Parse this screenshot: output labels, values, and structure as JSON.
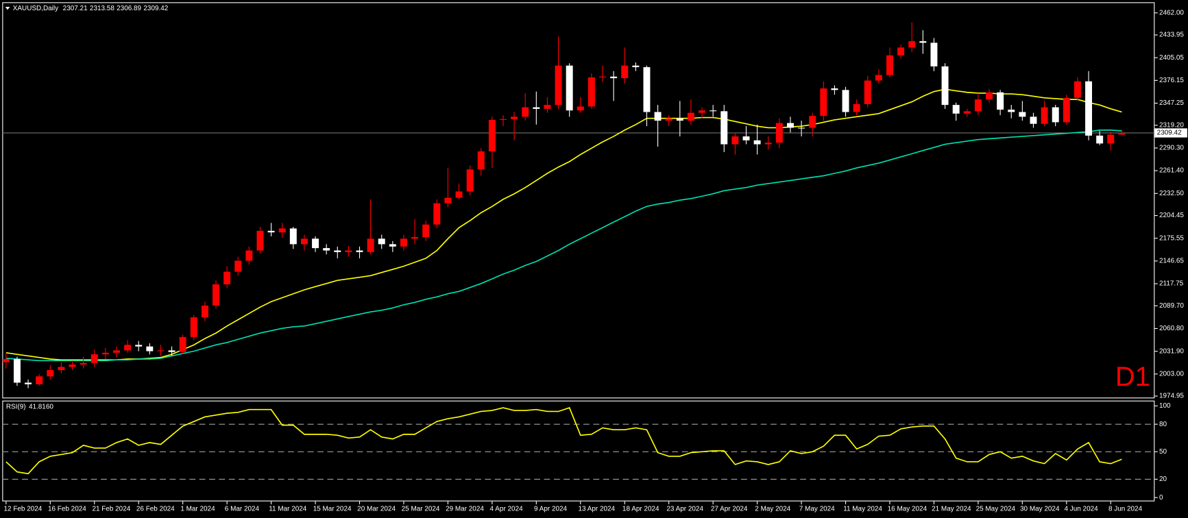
{
  "chart_data": {
    "type": "candlestick",
    "title": "XAUUSD,Daily",
    "timeframe": "D1",
    "up_color": "#ff0000",
    "down_color": "#ffffff",
    "price_line_color": "#808080",
    "categories": [
      "12 Feb 2024",
      null,
      null,
      null,
      "16 Feb 2024",
      null,
      null,
      null,
      "21 Feb 2024",
      null,
      null,
      null,
      "26 Feb 2024",
      null,
      null,
      null,
      "1 Mar 2024",
      null,
      null,
      null,
      "6 Mar 2024",
      null,
      null,
      null,
      "11 Mar 2024",
      null,
      null,
      null,
      "15 Mar 2024",
      null,
      null,
      null,
      "20 Mar 2024",
      null,
      null,
      null,
      "25 Mar 2024",
      null,
      null,
      null,
      "29 Mar 2024",
      null,
      null,
      null,
      "4 Apr 2024",
      null,
      null,
      null,
      "9 Apr 2024",
      null,
      null,
      null,
      "13 Apr 2024",
      null,
      null,
      null,
      "18 Apr 2024",
      null,
      null,
      null,
      "23 Apr 2024",
      null,
      null,
      null,
      "27 Apr 2024",
      null,
      null,
      null,
      "2 May 2024",
      null,
      null,
      null,
      "7 May 2024",
      null,
      null,
      null,
      "11 May 2024",
      null,
      null,
      null,
      "16 May 2024",
      null,
      null,
      null,
      "21 May 2024",
      null,
      null,
      null,
      "25 May 2024",
      null,
      null,
      null,
      "30 May 2024",
      null,
      null,
      null,
      "4 Jun 2024",
      null,
      null,
      null,
      "8 Jun 2024",
      null
    ],
    "open": [
      2018,
      2022,
      1992,
      1990,
      2000,
      2008,
      2012,
      2015,
      2017,
      2028,
      2030,
      2033,
      2040,
      2038,
      2032,
      2033,
      2031,
      2050,
      2075,
      2090,
      2117,
      2133,
      2147,
      2160,
      2185,
      2183,
      2188,
      2168,
      2175,
      2163,
      2160,
      2158,
      2160,
      2158,
      2175,
      2168,
      2165,
      2175,
      2177,
      2193,
      2220,
      2227,
      2235,
      2263,
      2286,
      2326,
      2327,
      2330,
      2342,
      2340,
      2345,
      2395,
      2338,
      2343,
      2380,
      2381,
      2379,
      2395,
      2393,
      2336,
      2325,
      2328,
      2325,
      2335,
      2338,
      2337,
      2295,
      2305,
      2300,
      2295,
      2297,
      2322,
      2316,
      2316,
      2331,
      2366,
      2364,
      2336,
      2346,
      2376,
      2383,
      2408,
      2418,
      2426,
      2424,
      2394,
      2345,
      2334,
      2337,
      2352,
      2361,
      2339,
      2336,
      2330,
      2321,
      2342,
      2323,
      2354,
      2375,
      2306,
      2296,
      2307.21
    ],
    "high": [
      2030,
      2025,
      1996,
      2003,
      2014,
      2018,
      2020,
      2025,
      2034,
      2036,
      2038,
      2046,
      2045,
      2042,
      2040,
      2038,
      2053,
      2078,
      2095,
      2122,
      2140,
      2152,
      2165,
      2190,
      2195,
      2195,
      2190,
      2180,
      2178,
      2168,
      2165,
      2166,
      2165,
      2225,
      2180,
      2172,
      2180,
      2200,
      2198,
      2225,
      2265,
      2245,
      2268,
      2290,
      2330,
      2332,
      2336,
      2360,
      2362,
      2355,
      2432,
      2398,
      2355,
      2385,
      2395,
      2388,
      2418,
      2399,
      2395,
      2345,
      2332,
      2350,
      2352,
      2342,
      2345,
      2345,
      2310,
      2318,
      2320,
      2305,
      2328,
      2330,
      2325,
      2335,
      2375,
      2370,
      2368,
      2352,
      2382,
      2390,
      2418,
      2422,
      2450,
      2440,
      2430,
      2398,
      2348,
      2340,
      2360,
      2365,
      2364,
      2345,
      2350,
      2335,
      2350,
      2345,
      2358,
      2380,
      2388,
      2312,
      2311,
      2313.58
    ],
    "low": [
      2010,
      1988,
      1985,
      1988,
      1996,
      2004,
      2008,
      2010,
      2012,
      2022,
      2024,
      2030,
      2032,
      2028,
      2026,
      2026,
      2028,
      2046,
      2070,
      2086,
      2112,
      2128,
      2142,
      2156,
      2178,
      2176,
      2162,
      2160,
      2158,
      2155,
      2150,
      2152,
      2150,
      2155,
      2162,
      2158,
      2160,
      2168,
      2172,
      2188,
      2215,
      2225,
      2230,
      2255,
      2265,
      2318,
      2300,
      2325,
      2320,
      2335,
      2340,
      2330,
      2335,
      2340,
      2374,
      2350,
      2372,
      2388,
      2318,
      2292,
      2318,
      2305,
      2320,
      2328,
      2330,
      2285,
      2282,
      2295,
      2282,
      2288,
      2290,
      2310,
      2305,
      2305,
      2325,
      2358,
      2330,
      2332,
      2342,
      2372,
      2380,
      2404,
      2412,
      2410,
      2388,
      2340,
      2325,
      2330,
      2332,
      2348,
      2332,
      2328,
      2325,
      2316,
      2318,
      2318,
      2320,
      2350,
      2300,
      2294,
      2287,
      2306.89
    ],
    "close": [
      2022,
      1992,
      1990,
      2000,
      2008,
      2012,
      2015,
      2017,
      2028,
      2030,
      2033,
      2040,
      2038,
      2032,
      2033,
      2031,
      2050,
      2075,
      2090,
      2117,
      2133,
      2147,
      2160,
      2185,
      2183,
      2188,
      2168,
      2175,
      2163,
      2160,
      2158,
      2160,
      2158,
      2175,
      2168,
      2165,
      2175,
      2177,
      2193,
      2220,
      2227,
      2235,
      2263,
      2286,
      2326,
      2327,
      2330,
      2342,
      2340,
      2345,
      2395,
      2338,
      2343,
      2380,
      2381,
      2379,
      2395,
      2393,
      2336,
      2325,
      2328,
      2325,
      2335,
      2338,
      2337,
      2295,
      2305,
      2300,
      2295,
      2297,
      2322,
      2316,
      2316,
      2331,
      2366,
      2364,
      2336,
      2346,
      2376,
      2383,
      2408,
      2418,
      2426,
      2424,
      2394,
      2345,
      2334,
      2337,
      2352,
      2361,
      2339,
      2336,
      2330,
      2321,
      2342,
      2323,
      2354,
      2375,
      2306,
      2296,
      2307.21,
      2309.42
    ],
    "moving_averages": [
      {
        "color": "#ffff00",
        "values": [
          2030,
          2028,
          2026,
          2024,
          2022,
          2021,
          2021,
          2021,
          2021,
          2021,
          2021,
          2022,
          2022,
          2023,
          2024,
          2028,
          2034,
          2040,
          2048,
          2055,
          2064,
          2072,
          2080,
          2088,
          2095,
          2100,
          2105,
          2110,
          2114,
          2118,
          2122,
          2124,
          2126,
          2128,
          2132,
          2136,
          2140,
          2145,
          2150,
          2160,
          2175,
          2189,
          2198,
          2208,
          2216,
          2225,
          2232,
          2240,
          2249,
          2258,
          2266,
          2273,
          2282,
          2290,
          2298,
          2305,
          2313,
          2320,
          2328,
          2328,
          2328,
          2328,
          2328,
          2329,
          2329,
          2327,
          2324,
          2321,
          2318,
          2316,
          2316,
          2317,
          2318,
          2320,
          2323,
          2326,
          2328,
          2330,
          2332,
          2334,
          2339,
          2344,
          2349,
          2356,
          2362,
          2365,
          2363,
          2361,
          2360,
          2360,
          2359,
          2359,
          2358,
          2356,
          2354,
          2353,
          2352,
          2352,
          2348,
          2345,
          2340,
          2336
        ]
      },
      {
        "color": "#00e0b0",
        "values": [
          2023,
          2022,
          2021,
          2020,
          2020,
          2020,
          2020,
          2020,
          2020,
          2020,
          2021,
          2021,
          2022,
          2022,
          2023,
          2026,
          2029,
          2032,
          2036,
          2040,
          2043,
          2047,
          2051,
          2055,
          2058,
          2061,
          2063,
          2064,
          2067,
          2070,
          2073,
          2076,
          2079,
          2082,
          2084,
          2087,
          2091,
          2094,
          2098,
          2101,
          2105,
          2108,
          2113,
          2118,
          2124,
          2130,
          2135,
          2141,
          2146,
          2153,
          2160,
          2168,
          2175,
          2182,
          2189,
          2196,
          2203,
          2210,
          2216,
          2219,
          2221,
          2224,
          2226,
          2229,
          2232,
          2236,
          2238,
          2240,
          2243,
          2245,
          2247,
          2249,
          2251,
          2253,
          2255,
          2258,
          2261,
          2265,
          2268,
          2271,
          2275,
          2279,
          2283,
          2287,
          2291,
          2295,
          2297,
          2299,
          2301,
          2302,
          2303,
          2304,
          2305,
          2306,
          2307,
          2308,
          2309,
          2310,
          2311,
          2313,
          2313,
          2312
        ]
      }
    ],
    "ylim": [
      1974.95,
      2462
    ],
    "yticks": [
      {
        "value": 2462,
        "label": "2462.00"
      },
      {
        "value": 2433.95,
        "label": "2433.95"
      },
      {
        "value": 2405.05,
        "label": "2405.05"
      },
      {
        "value": 2376.15,
        "label": "2376.15"
      },
      {
        "value": 2347.25,
        "label": "2347.25"
      },
      {
        "value": 2319.2,
        "label": "2319.20"
      },
      {
        "value": 2290.3,
        "label": "2290.30"
      },
      {
        "value": 2261.4,
        "label": "2261.40"
      },
      {
        "value": 2232.5,
        "label": "2232.50"
      },
      {
        "value": 2204.45,
        "label": "2204.45"
      },
      {
        "value": 2175.55,
        "label": "2175.55"
      },
      {
        "value": 2146.65,
        "label": "2146.65"
      },
      {
        "value": 2117.75,
        "label": "2117.75"
      },
      {
        "value": 2089.7,
        "label": "2089.70"
      },
      {
        "value": 2060.8,
        "label": "2060.80"
      },
      {
        "value": 2031.9,
        "label": "2031.90"
      },
      {
        "value": 2003,
        "label": "2003.00"
      },
      {
        "value": 1974.95,
        "label": "1974.95"
      }
    ],
    "rsi": {
      "title": "RSI(9)",
      "value_label": "41.8160",
      "color": "#ffff00",
      "level_color": "#a0a0a0",
      "values": [
        39,
        28,
        26,
        39,
        45,
        47,
        49,
        57,
        54,
        54,
        60,
        64,
        57,
        60,
        58,
        68,
        78,
        83,
        88,
        90,
        92,
        93,
        96,
        96,
        96,
        79,
        79,
        69,
        69,
        69,
        68,
        65,
        66,
        74,
        66,
        64,
        69,
        69,
        76,
        83,
        86,
        88,
        91,
        94,
        95,
        98,
        95,
        95,
        96,
        94,
        94,
        98,
        68,
        69,
        76,
        74,
        74,
        76,
        74,
        49,
        45,
        45,
        49,
        50,
        51,
        51,
        36,
        40,
        39,
        36,
        39,
        51,
        48,
        50,
        56,
        68,
        68,
        53,
        58,
        67,
        68,
        75,
        77,
        78,
        78,
        64,
        43,
        39,
        39,
        47,
        50,
        43,
        45,
        40,
        37,
        48,
        41,
        53,
        60,
        39,
        37,
        41.816
      ],
      "ylim": [
        0,
        100
      ],
      "yticks": [
        100,
        80,
        50,
        20,
        0
      ],
      "levels": [
        80,
        50,
        20
      ]
    }
  }
}
